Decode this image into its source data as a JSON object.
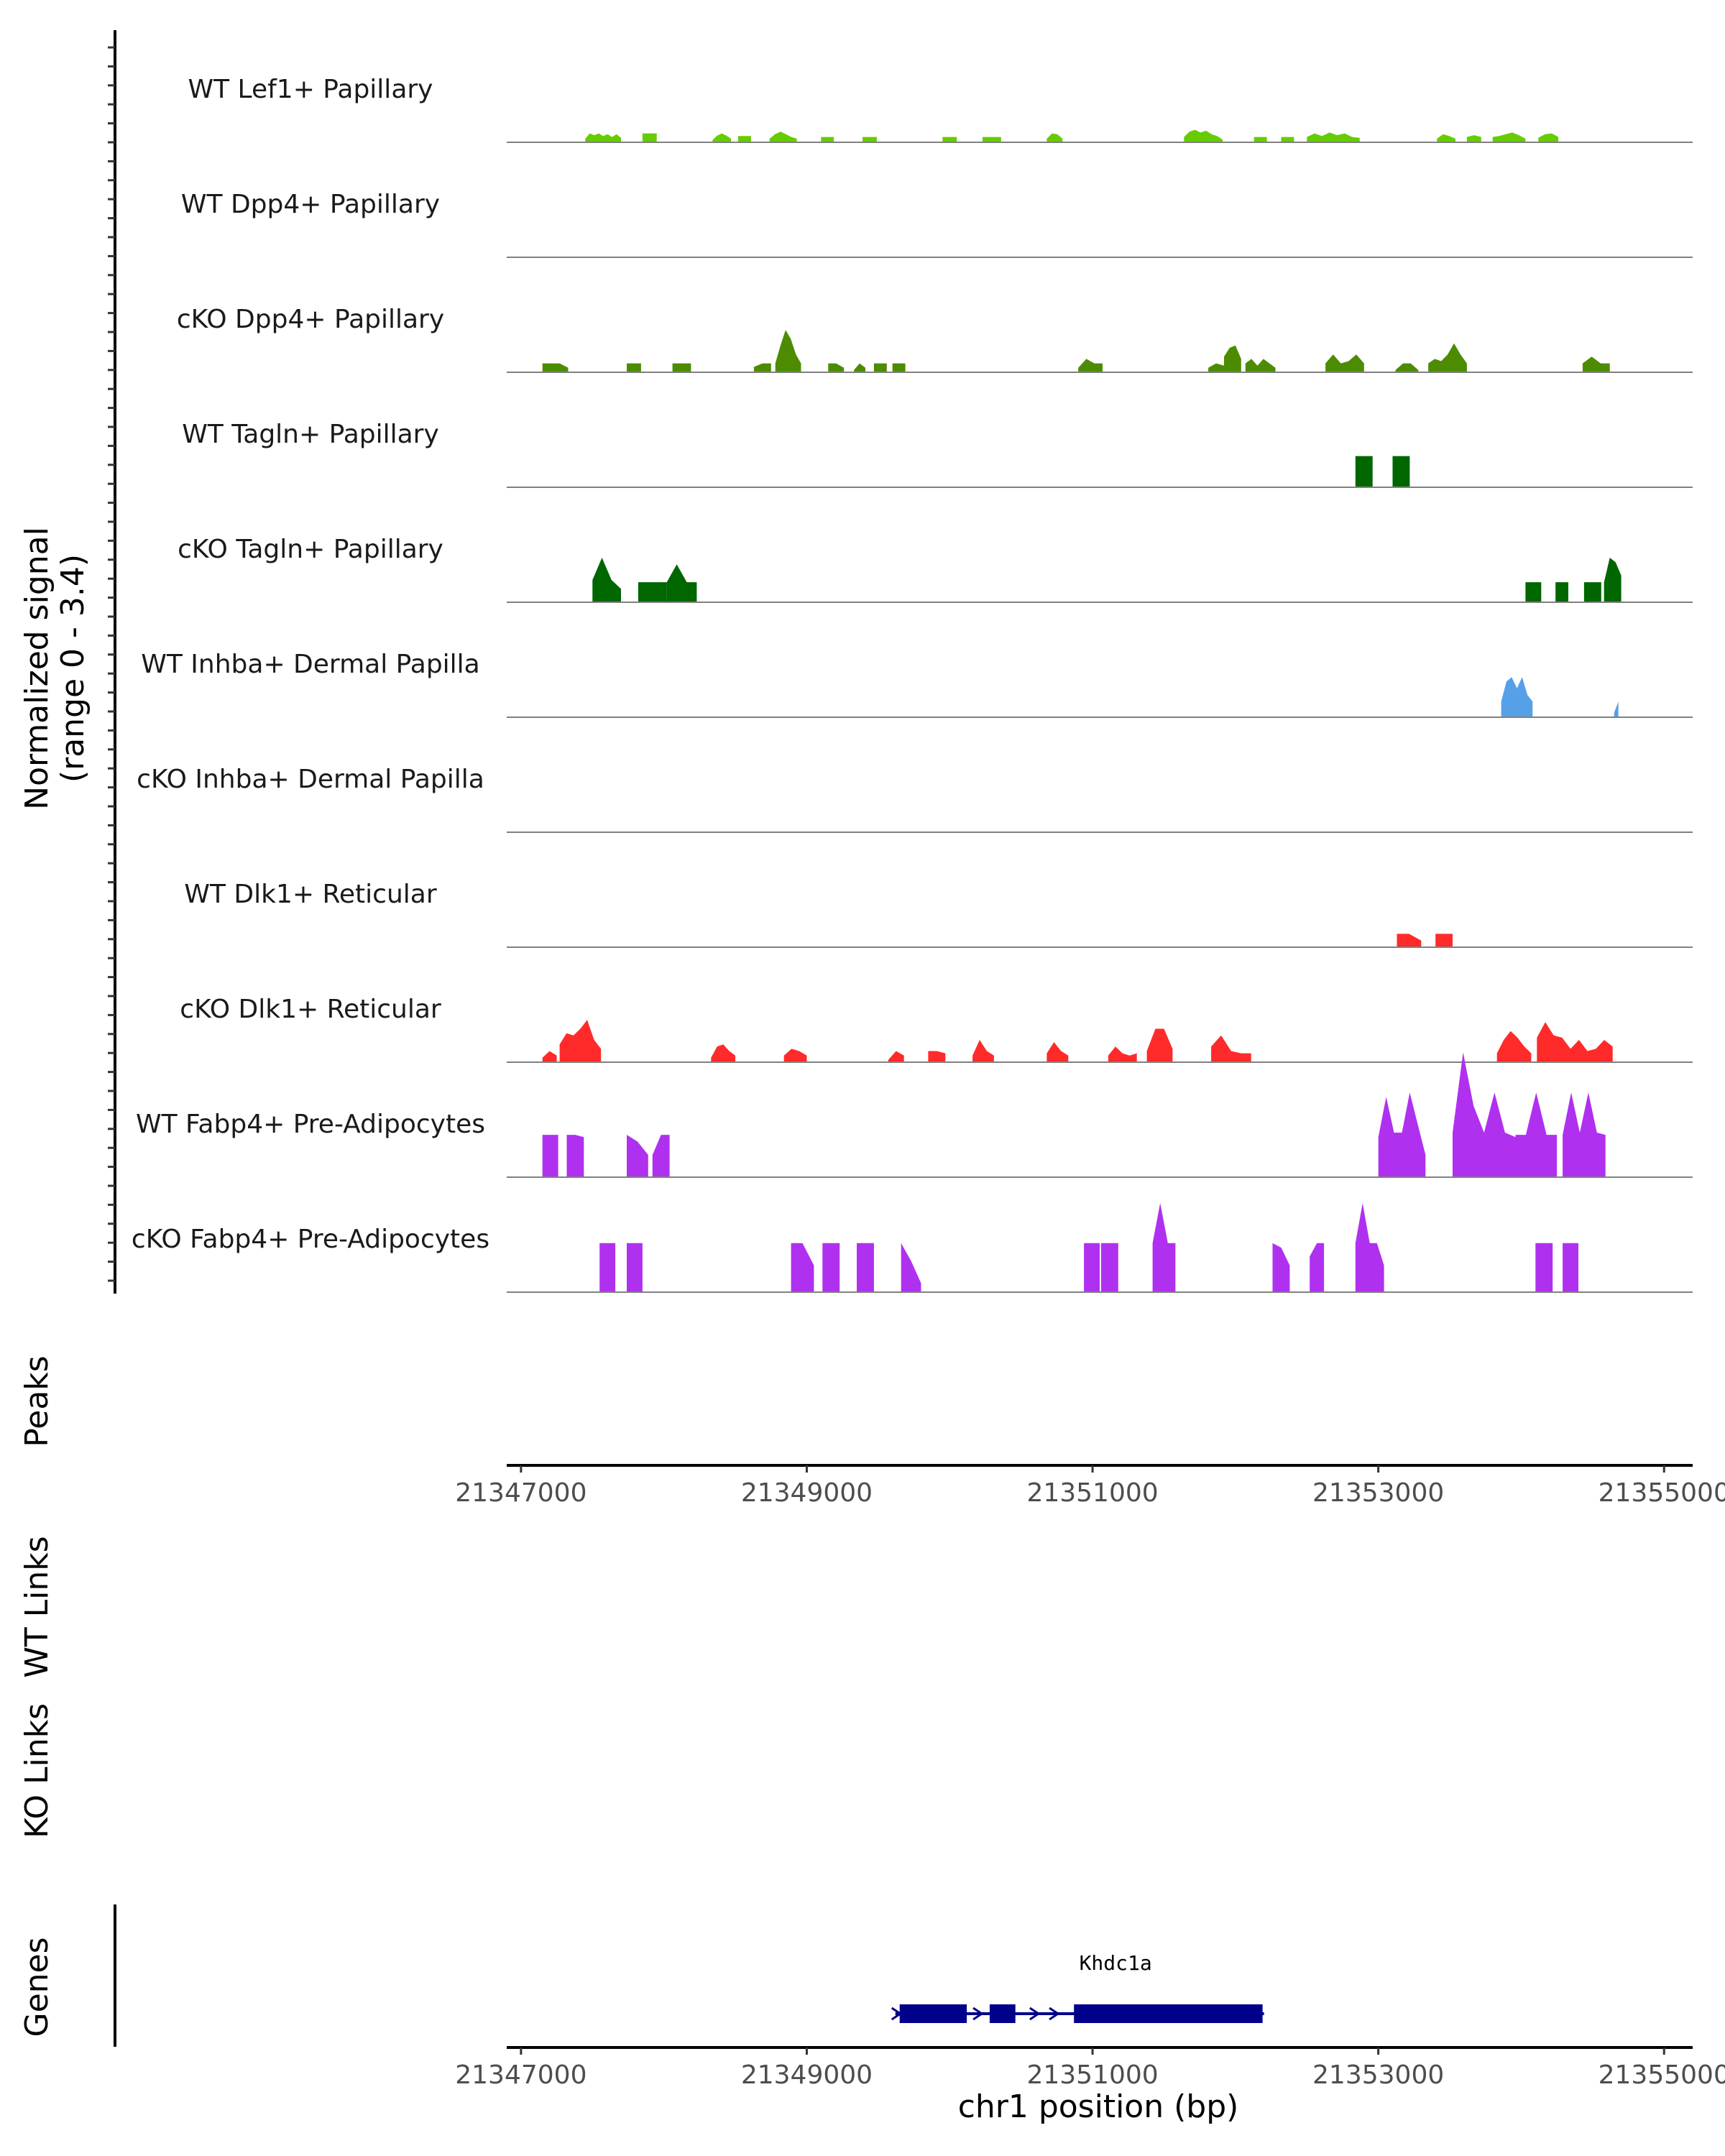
{
  "chart_data": {
    "type": "area",
    "title": "",
    "chromosome": "chr1",
    "xlabel": "chr1 position (bp)",
    "xlim": [
      21346900,
      21355200
    ],
    "xticks": [
      21347000,
      21349000,
      21351000,
      21353000,
      21355000
    ],
    "xtick_labels": [
      "21347000",
      "21349000",
      "21351000",
      "21353000",
      "21355000"
    ],
    "ylabel": "Normalized signal\n(range 0 - 3.4)",
    "ylabel_lines": [
      "Normalized signal",
      "(range 0 - 3.4)"
    ],
    "ylim": [
      0,
      3.4
    ],
    "tracks": [
      {
        "name": "WT Lef1+ Papillary",
        "color": "#66cc00",
        "segments": [
          {
            "start": 21347450,
            "end": 21347700,
            "heights": [
              0.08,
              0.2,
              0.16,
              0.2,
              0.14,
              0.18,
              0.12,
              0.18,
              0.1
            ]
          },
          {
            "start": 21347850,
            "end": 21347950,
            "heights": [
              0.2,
              0.2,
              0.2
            ]
          },
          {
            "start": 21348340,
            "end": 21348470,
            "heights": [
              0.05,
              0.15,
              0.2,
              0.15,
              0.08
            ]
          },
          {
            "start": 21348520,
            "end": 21348610,
            "heights": [
              0.14,
              0.14,
              0.14
            ]
          },
          {
            "start": 21348740,
            "end": 21348930,
            "heights": [
              0.08,
              0.18,
              0.24,
              0.18,
              0.12,
              0.08
            ]
          },
          {
            "start": 21349100,
            "end": 21349190,
            "heights": [
              0.12,
              0.12,
              0.12
            ]
          },
          {
            "start": 21349390,
            "end": 21349490,
            "heights": [
              0.12,
              0.12,
              0.12
            ]
          },
          {
            "start": 21349950,
            "end": 21350050,
            "heights": [
              0.12,
              0.12,
              0.12
            ]
          },
          {
            "start": 21350230,
            "end": 21350360,
            "heights": [
              0.12,
              0.12,
              0.12
            ]
          },
          {
            "start": 21350680,
            "end": 21350790,
            "heights": [
              0.08,
              0.2,
              0.18,
              0.08
            ]
          },
          {
            "start": 21351640,
            "end": 21351910,
            "heights": [
              0.12,
              0.24,
              0.28,
              0.22,
              0.26,
              0.18,
              0.14,
              0.06
            ]
          },
          {
            "start": 21352130,
            "end": 21352220,
            "heights": [
              0.12,
              0.12,
              0.12
            ]
          },
          {
            "start": 21352320,
            "end": 21352410,
            "heights": [
              0.12,
              0.12,
              0.12
            ]
          },
          {
            "start": 21352500,
            "end": 21352870,
            "heights": [
              0.12,
              0.2,
              0.14,
              0.22,
              0.16,
              0.2,
              0.12,
              0.1
            ]
          },
          {
            "start": 21353410,
            "end": 21353540,
            "heights": [
              0.08,
              0.18,
              0.14,
              0.08
            ]
          },
          {
            "start": 21353620,
            "end": 21353720,
            "heights": [
              0.12,
              0.16,
              0.12
            ]
          },
          {
            "start": 21353800,
            "end": 21354030,
            "heights": [
              0.12,
              0.14,
              0.18,
              0.22,
              0.16,
              0.08
            ]
          },
          {
            "start": 21354120,
            "end": 21354260,
            "heights": [
              0.1,
              0.18,
              0.2,
              0.12
            ]
          }
        ]
      },
      {
        "name": "WT Dpp4+ Papillary",
        "color": "#4d8c00",
        "segments": []
      },
      {
        "name": "cKO Dpp4+ Papillary",
        "color": "#4d8c00",
        "segments": [
          {
            "start": 21347150,
            "end": 21347330,
            "heights": [
              0.2,
              0.2,
              0.2,
              0.1
            ]
          },
          {
            "start": 21347740,
            "end": 21347840,
            "heights": [
              0.2,
              0.2,
              0.2
            ]
          },
          {
            "start": 21348060,
            "end": 21348190,
            "heights": [
              0.2,
              0.2,
              0.2
            ]
          },
          {
            "start": 21348630,
            "end": 21348750,
            "heights": [
              0.12,
              0.2,
              0.2
            ]
          },
          {
            "start": 21348780,
            "end": 21348960,
            "heights": [
              0.2,
              0.6,
              0.95,
              0.75,
              0.4,
              0.2
            ]
          },
          {
            "start": 21349150,
            "end": 21349260,
            "heights": [
              0.2,
              0.2,
              0.1
            ]
          },
          {
            "start": 21349330,
            "end": 21349410,
            "heights": [
              0.05,
              0.2,
              0.1
            ]
          },
          {
            "start": 21349470,
            "end": 21349560,
            "heights": [
              0.2,
              0.2,
              0.2
            ]
          },
          {
            "start": 21349600,
            "end": 21349690,
            "heights": [
              0.2,
              0.2,
              0.2
            ]
          },
          {
            "start": 21350900,
            "end": 21351070,
            "heights": [
              0.1,
              0.3,
              0.2,
              0.2
            ]
          },
          {
            "start": 21351810,
            "end": 21351920,
            "heights": [
              0.1,
              0.2,
              0.15
            ]
          },
          {
            "start": 21351920,
            "end": 21352040,
            "heights": [
              0.35,
              0.55,
              0.6,
              0.3
            ]
          },
          {
            "start": 21352070,
            "end": 21352280,
            "heights": [
              0.2,
              0.3,
              0.15,
              0.3,
              0.2,
              0.1
            ]
          },
          {
            "start": 21352630,
            "end": 21352900,
            "heights": [
              0.2,
              0.4,
              0.2,
              0.25,
              0.4,
              0.2
            ]
          },
          {
            "start": 21353120,
            "end": 21353280,
            "heights": [
              0.05,
              0.2,
              0.2,
              0.05
            ]
          },
          {
            "start": 21353350,
            "end": 21353620,
            "heights": [
              0.2,
              0.3,
              0.25,
              0.4,
              0.65,
              0.4,
              0.2
            ]
          },
          {
            "start": 21354430,
            "end": 21354620,
            "heights": [
              0.2,
              0.35,
              0.2,
              0.2
            ]
          }
        ]
      },
      {
        "name": "WT Tagln+ Papillary",
        "color": "#006600",
        "segments": [
          {
            "start": 21352840,
            "end": 21352960,
            "heights": [
              0.7,
              0.7,
              0.7
            ]
          },
          {
            "start": 21353100,
            "end": 21353220,
            "heights": [
              0.7,
              0.7,
              0.7
            ]
          }
        ]
      },
      {
        "name": "cKO Tagln+ Papillary",
        "color": "#006600",
        "segments": [
          {
            "start": 21347500,
            "end": 21347700,
            "heights": [
              0.5,
              1.0,
              0.5,
              0.3
            ]
          },
          {
            "start": 21347820,
            "end": 21348020,
            "heights": [
              0.45,
              0.45,
              0.45
            ]
          },
          {
            "start": 21348020,
            "end": 21348230,
            "heights": [
              0.45,
              0.85,
              0.45,
              0.45
            ]
          },
          {
            "start": 21354030,
            "end": 21354140,
            "heights": [
              0.45,
              0.45,
              0.45
            ]
          },
          {
            "start": 21354240,
            "end": 21354330,
            "heights": [
              0.45,
              0.45,
              0.45
            ]
          },
          {
            "start": 21354440,
            "end": 21354560,
            "heights": [
              0.45,
              0.45,
              0.45
            ]
          },
          {
            "start": 21354580,
            "end": 21354700,
            "heights": [
              0.45,
              1.0,
              0.9,
              0.6
            ]
          }
        ]
      },
      {
        "name": "WT Inhba+ Dermal Papilla",
        "color": "#56a0e8",
        "segments": [
          {
            "start": 21353860,
            "end": 21354080,
            "heights": [
              0.35,
              0.8,
              0.9,
              0.65,
              0.9,
              0.5,
              0.35
            ]
          },
          {
            "start": 21354650,
            "end": 21354680,
            "heights": [
              0.1,
              0.35
            ]
          }
        ]
      },
      {
        "name": "cKO Inhba+ Dermal Papilla",
        "color": "#56a0e8",
        "segments": []
      },
      {
        "name": "WT Dlk1+ Reticular",
        "color": "#ff2a2a",
        "segments": [
          {
            "start": 21353130,
            "end": 21353300,
            "heights": [
              0.3,
              0.3,
              0.15
            ]
          },
          {
            "start": 21353400,
            "end": 21353520,
            "heights": [
              0.3,
              0.3,
              0.3
            ]
          }
        ]
      },
      {
        "name": "cKO Dlk1+ Reticular",
        "color": "#ff2a2a",
        "segments": [
          {
            "start": 21347150,
            "end": 21347250,
            "heights": [
              0.1,
              0.25,
              0.15
            ]
          },
          {
            "start": 21347270,
            "end": 21347560,
            "heights": [
              0.4,
              0.65,
              0.6,
              0.75,
              0.95,
              0.5,
              0.3
            ]
          },
          {
            "start": 21348330,
            "end": 21348500,
            "heights": [
              0.1,
              0.35,
              0.4,
              0.25,
              0.15
            ]
          },
          {
            "start": 21348840,
            "end": 21349000,
            "heights": [
              0.15,
              0.3,
              0.25,
              0.15
            ]
          },
          {
            "start": 21349570,
            "end": 21349680,
            "heights": [
              0.05,
              0.25,
              0.15
            ]
          },
          {
            "start": 21349850,
            "end": 21349970,
            "heights": [
              0.25,
              0.25,
              0.2
            ]
          },
          {
            "start": 21350160,
            "end": 21350310,
            "heights": [
              0.15,
              0.5,
              0.25,
              0.15
            ]
          },
          {
            "start": 21350680,
            "end": 21350830,
            "heights": [
              0.2,
              0.45,
              0.25,
              0.15
            ]
          },
          {
            "start": 21351110,
            "end": 21351310,
            "heights": [
              0.15,
              0.35,
              0.2,
              0.15,
              0.2
            ]
          },
          {
            "start": 21351380,
            "end": 21351560,
            "heights": [
              0.25,
              0.75,
              0.75,
              0.3
            ]
          },
          {
            "start": 21351830,
            "end": 21352110,
            "heights": [
              0.35,
              0.6,
              0.25,
              0.2,
              0.2
            ]
          },
          {
            "start": 21353830,
            "end": 21354070,
            "heights": [
              0.2,
              0.5,
              0.7,
              0.55,
              0.35,
              0.2
            ]
          },
          {
            "start": 21354110,
            "end": 21354640,
            "heights": [
              0.55,
              0.9,
              0.6,
              0.55,
              0.3,
              0.5,
              0.25,
              0.3,
              0.5,
              0.35
            ]
          }
        ]
      },
      {
        "name": "WT Fabp4+ Pre-Adipocytes",
        "color": "#b030f0",
        "segments": [
          {
            "start": 21347150,
            "end": 21347260,
            "heights": [
              0.95,
              0.95,
              0.95
            ]
          },
          {
            "start": 21347320,
            "end": 21347440,
            "heights": [
              0.95,
              0.95,
              0.9
            ]
          },
          {
            "start": 21347740,
            "end": 21347890,
            "heights": [
              0.95,
              0.8,
              0.5
            ]
          },
          {
            "start": 21347920,
            "end": 21348040,
            "heights": [
              0.5,
              0.95,
              0.95
            ]
          },
          {
            "start": 21353000,
            "end": 21353330,
            "heights": [
              0.9,
              1.8,
              1.0,
              1.0,
              1.9,
              1.2,
              0.5
            ]
          },
          {
            "start": 21353520,
            "end": 21353960,
            "heights": [
              1.0,
              2.8,
              1.6,
              1.0,
              1.9,
              1.0,
              0.9
            ]
          },
          {
            "start": 21353960,
            "end": 21354250,
            "heights": [
              0.95,
              0.95,
              1.9,
              0.95,
              0.95
            ]
          },
          {
            "start": 21354290,
            "end": 21354590,
            "heights": [
              0.95,
              1.9,
              1.0,
              1.9,
              1.0,
              0.95
            ]
          }
        ]
      },
      {
        "name": "cKO Fabp4+ Pre-Adipocytes",
        "color": "#b030f0",
        "segments": [
          {
            "start": 21347550,
            "end": 21347660,
            "heights": [
              1.1,
              1.1,
              1.1
            ]
          },
          {
            "start": 21347740,
            "end": 21347850,
            "heights": [
              1.1,
              1.1,
              1.1
            ]
          },
          {
            "start": 21348890,
            "end": 21349050,
            "heights": [
              1.1,
              1.1,
              0.6
            ]
          },
          {
            "start": 21349110,
            "end": 21349230,
            "heights": [
              1.1,
              1.1,
              1.1
            ]
          },
          {
            "start": 21349350,
            "end": 21349470,
            "heights": [
              1.1,
              1.1,
              1.1
            ]
          },
          {
            "start": 21349660,
            "end": 21349800,
            "heights": [
              1.1,
              0.7,
              0.2
            ]
          },
          {
            "start": 21350940,
            "end": 21351050,
            "heights": [
              1.1,
              1.1,
              1.1
            ]
          },
          {
            "start": 21351060,
            "end": 21351180,
            "heights": [
              1.1,
              1.1,
              1.1
            ]
          },
          {
            "start": 21351420,
            "end": 21351580,
            "heights": [
              1.1,
              2.0,
              1.1,
              1.1
            ]
          },
          {
            "start": 21352260,
            "end": 21352380,
            "heights": [
              1.1,
              1.0,
              0.6
            ]
          },
          {
            "start": 21352520,
            "end": 21352620,
            "heights": [
              0.8,
              1.1,
              1.1
            ]
          },
          {
            "start": 21352840,
            "end": 21353040,
            "heights": [
              1.1,
              2.0,
              1.1,
              1.1,
              0.6
            ]
          },
          {
            "start": 21354100,
            "end": 21354220,
            "heights": [
              1.1,
              1.1,
              1.1
            ]
          },
          {
            "start": 21354290,
            "end": 21354400,
            "heights": [
              1.1,
              1.1,
              1.1
            ]
          }
        ]
      }
    ],
    "peaks_label": "Peaks",
    "peaks": [],
    "links_panels": [
      {
        "label": "WT Links",
        "links": []
      },
      {
        "label": "KO Links",
        "links": []
      }
    ],
    "genes_label": "Genes",
    "genes": [
      {
        "name": "Khdc1a",
        "strand": "+",
        "color": "#00008b",
        "start": 21349620,
        "end": 21352200,
        "exons": [
          [
            21349650,
            21350120
          ],
          [
            21350280,
            21350460
          ],
          [
            21350870,
            21352190
          ]
        ]
      }
    ]
  }
}
